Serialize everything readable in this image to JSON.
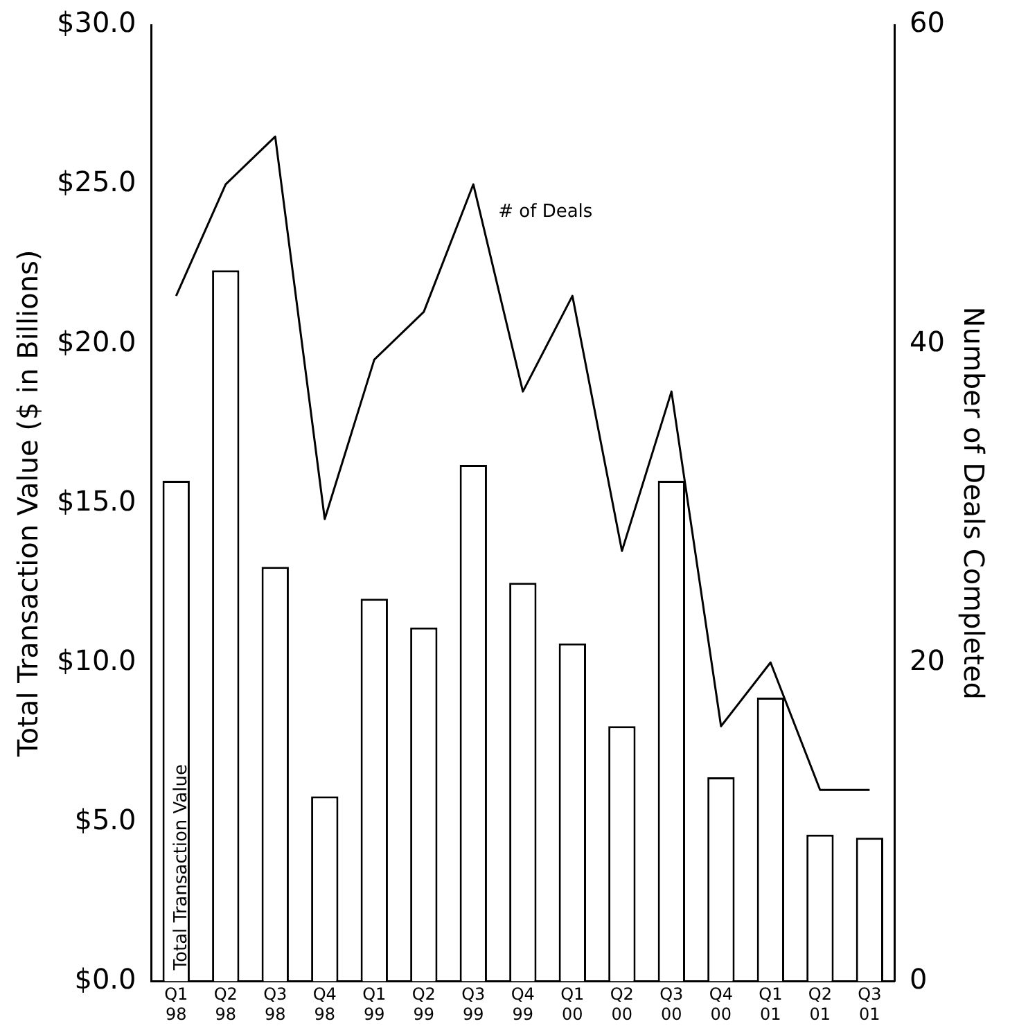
{
  "chart_data": {
    "type": "bar",
    "ylabel": "Total Transaction Value ($ in Billions)",
    "y2label": "Number of Deals Completed",
    "categories": [
      "Q1 98",
      "Q2 98",
      "Q3 98",
      "Q4 98",
      "Q1 99",
      "Q2 99",
      "Q3 99",
      "Q4 99",
      "Q1 00",
      "Q2 00",
      "Q3 00",
      "Q4 00",
      "Q1 01",
      "Q2 01",
      "Q3 01"
    ],
    "series": [
      {
        "name": "Total Transaction Value",
        "color": "#ffffff",
        "values": [
          15.7,
          22.3,
          13.0,
          5.8,
          12.0,
          11.1,
          16.2,
          12.5,
          10.6,
          8.0,
          15.7,
          6.4,
          8.9,
          4.6,
          4.5
        ]
      },
      {
        "name": "# of Deals",
        "type": "line",
        "axis": "y2",
        "color": "#000000",
        "values": [
          43,
          50,
          53,
          29,
          39,
          42,
          50,
          37,
          43,
          27,
          37,
          16,
          20,
          12,
          12
        ]
      }
    ],
    "ylim": [
      0,
      30
    ],
    "yticks": [
      {
        "value": 0,
        "label": "$0.0"
      },
      {
        "value": 5,
        "label": "$5.0"
      },
      {
        "value": 10,
        "label": "$10.0"
      },
      {
        "value": 15,
        "label": "$15.0"
      },
      {
        "value": 20,
        "label": "$20.0"
      },
      {
        "value": 25,
        "label": "$25.0"
      },
      {
        "value": 30,
        "label": "$30.0"
      }
    ],
    "y2lim": [
      0,
      60
    ],
    "y2ticks": [
      0,
      20,
      40,
      60
    ],
    "grid": false,
    "legend": false,
    "marker": "none"
  }
}
